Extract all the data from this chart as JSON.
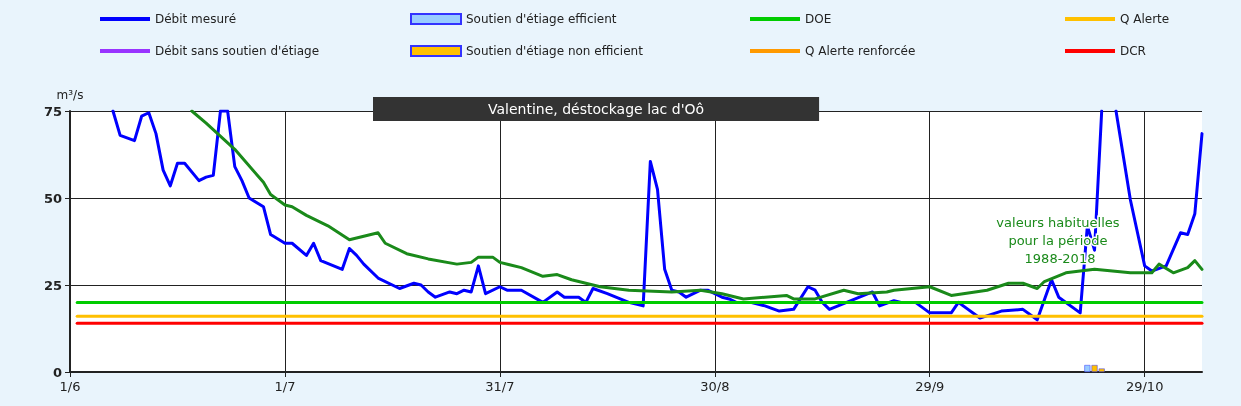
{
  "chart_data": {
    "type": "line",
    "title": "Valentine, déstockage lac d'Oô",
    "ylabel": "m³/s",
    "xlim": [
      "--06-01",
      "--11-06"
    ],
    "xticks": [
      {
        "value": "--06-01",
        "label": "1/6"
      },
      {
        "value": "--07-01",
        "label": "1/7"
      },
      {
        "value": "--07-31",
        "label": "31/7"
      },
      {
        "value": "--08-30",
        "label": "30/8"
      },
      {
        "value": "--09-29",
        "label": "29/9"
      },
      {
        "value": "--10-29",
        "label": "29/10"
      }
    ],
    "ylim": [
      0,
      75
    ],
    "yticks": [
      0,
      25,
      50,
      75
    ],
    "grid": true,
    "legend": "top",
    "marker": "none",
    "annotations": [
      "valeurs habituelles pour la période 1988-2018"
    ],
    "series": [
      {
        "name": "Débit mesuré",
        "color": "#0000ff",
        "x": [
          "--06-07",
          "--06-08",
          "--06-10",
          "--06-11",
          "--06-12",
          "--06-13",
          "--06-14",
          "--06-15",
          "--06-16",
          "--06-17",
          "--06-19",
          "--06-20",
          "--06-21",
          "--06-22",
          "--06-23",
          "--06-24",
          "--06-25",
          "--06-26",
          "--06-28",
          "--06-29",
          "--07-01",
          "--07-02",
          "--07-04",
          "--07-05",
          "--07-06",
          "--07-09",
          "--07-10",
          "--07-11",
          "--07-12",
          "--07-14",
          "--07-17",
          "--07-19",
          "--07-20",
          "--07-21",
          "--07-22",
          "--07-24",
          "--07-25",
          "--07-26",
          "--07-27",
          "--07-28",
          "--07-29",
          "--07-31",
          "--08-01",
          "--08-03",
          "--08-06",
          "--08-08",
          "--08-09",
          "--08-11",
          "--08-12",
          "--08-13",
          "--08-15",
          "--08-18",
          "--08-20",
          "--08-21",
          "--08-22",
          "--08-23",
          "--08-24",
          "--08-25",
          "--08-26",
          "--08-28",
          "--08-29",
          "--08-31",
          "--09-01",
          "--09-02",
          "--09-04",
          "--09-06",
          "--09-08",
          "--09-10",
          "--09-12",
          "--09-13",
          "--09-14",
          "--09-15",
          "--09-18",
          "--09-21",
          "--09-22",
          "--09-24",
          "--09-25",
          "--09-27",
          "--09-29",
          "--10-02",
          "--10-03",
          "--10-06",
          "--10-09",
          "--10-12",
          "--10-14",
          "--10-16",
          "--10-17",
          "--10-20",
          "--10-21",
          "--10-22",
          "--10-23",
          "--10-24",
          "--10-25",
          "--10-27",
          "--10-29",
          "--10-30",
          "--11-01",
          "--11-03",
          "--11-04",
          "--11-05",
          "--11-06"
        ],
        "values": [
          75,
          68,
          66.5,
          73.5,
          74.5,
          68.5,
          58,
          53.5,
          60,
          60,
          55,
          56,
          56.5,
          75,
          75,
          59,
          55,
          50,
          47.5,
          39.5,
          37,
          37,
          33.5,
          37,
          32,
          29.5,
          35.5,
          33.5,
          31,
          27,
          24,
          25.5,
          25,
          23,
          21.5,
          23,
          22.5,
          23.5,
          23,
          30.5,
          22.5,
          24.5,
          23.5,
          23.5,
          20,
          23,
          21.5,
          21.5,
          20,
          24,
          22.5,
          20,
          19,
          60.5,
          52.5,
          29.5,
          23.5,
          23,
          21.5,
          23.5,
          23.5,
          21.5,
          21,
          20,
          20,
          19,
          17.5,
          18,
          24.5,
          23.5,
          20,
          18,
          20.5,
          23,
          19,
          20.5,
          20,
          20,
          17,
          17,
          20,
          15.5,
          17.5,
          18,
          15,
          26.5,
          21.5,
          17,
          42,
          35,
          75,
          null,
          75,
          49.5,
          30.5,
          29,
          30.5,
          40,
          39.5,
          45.5,
          68.5
        ]
      },
      {
        "name": "Débit sans soutien d'étiage",
        "color": "#9933ff"
      },
      {
        "name": "Soutien d'étiage efficient",
        "type": "bar",
        "color": "#99ccff",
        "x": [
          "--10-21"
        ],
        "values": [
          2
        ]
      },
      {
        "name": "Soutien d'étiage non efficient",
        "type": "bar",
        "color": "#ffc000",
        "x": [
          "--10-22",
          "--10-23"
        ],
        "values": [
          2,
          1
        ]
      },
      {
        "name": "DOE",
        "color": "#00cc00",
        "x": [
          "--06-02",
          "--11-06"
        ],
        "values": [
          20,
          20
        ]
      },
      {
        "name": "Q Alerte renforcée",
        "color": "#ff9900"
      },
      {
        "name": "Q Alerte",
        "color": "#ffc000",
        "x": [
          "--06-02",
          "--11-06"
        ],
        "values": [
          16,
          16
        ]
      },
      {
        "name": "DCR",
        "color": "#ff0000",
        "x": [
          "--06-02",
          "--11-06"
        ],
        "values": [
          14,
          14
        ]
      },
      {
        "color": "#1a8a1a",
        "x": [
          "--06-18",
          "--06-20",
          "--06-24",
          "--06-28",
          "--06-29",
          "--07-01",
          "--07-02",
          "--07-04",
          "--07-07",
          "--07-10",
          "--07-11",
          "--07-14",
          "--07-15",
          "--07-18",
          "--07-21",
          "--07-25",
          "--07-27",
          "--07-28",
          "--07-30",
          "--07-31",
          "--08-03",
          "--08-06",
          "--08-08",
          "--08-10",
          "--08-14",
          "--08-18",
          "--08-24",
          "--08-28",
          "--08-31",
          "--09-03",
          "--09-09",
          "--09-10",
          "--09-13",
          "--09-17",
          "--09-19",
          "--09-23",
          "--09-24",
          "--09-29",
          "--10-02",
          "--10-07",
          "--10-10",
          "--10-12",
          "--10-14",
          "--10-15",
          "--10-18",
          "--10-22",
          "--10-27",
          "--10-30",
          "--10-31",
          "--11-02",
          "--11-04",
          "--11-05",
          "--11-06"
        ],
        "values": [
          75,
          71.5,
          64,
          54.5,
          51,
          48,
          47.5,
          45,
          42,
          38,
          38.5,
          40,
          37,
          34,
          32.5,
          31,
          31.5,
          33,
          33,
          31.5,
          30,
          27.5,
          28,
          26.5,
          24.5,
          23.5,
          23,
          23.5,
          22.5,
          21,
          22,
          21,
          21,
          23.5,
          22.5,
          23,
          23.5,
          24.5,
          22,
          23.5,
          25.5,
          25.5,
          24,
          26,
          28.5,
          29.5,
          28.5,
          28.5,
          31,
          28.5,
          30,
          32,
          29.5
        ]
      }
    ]
  }
}
